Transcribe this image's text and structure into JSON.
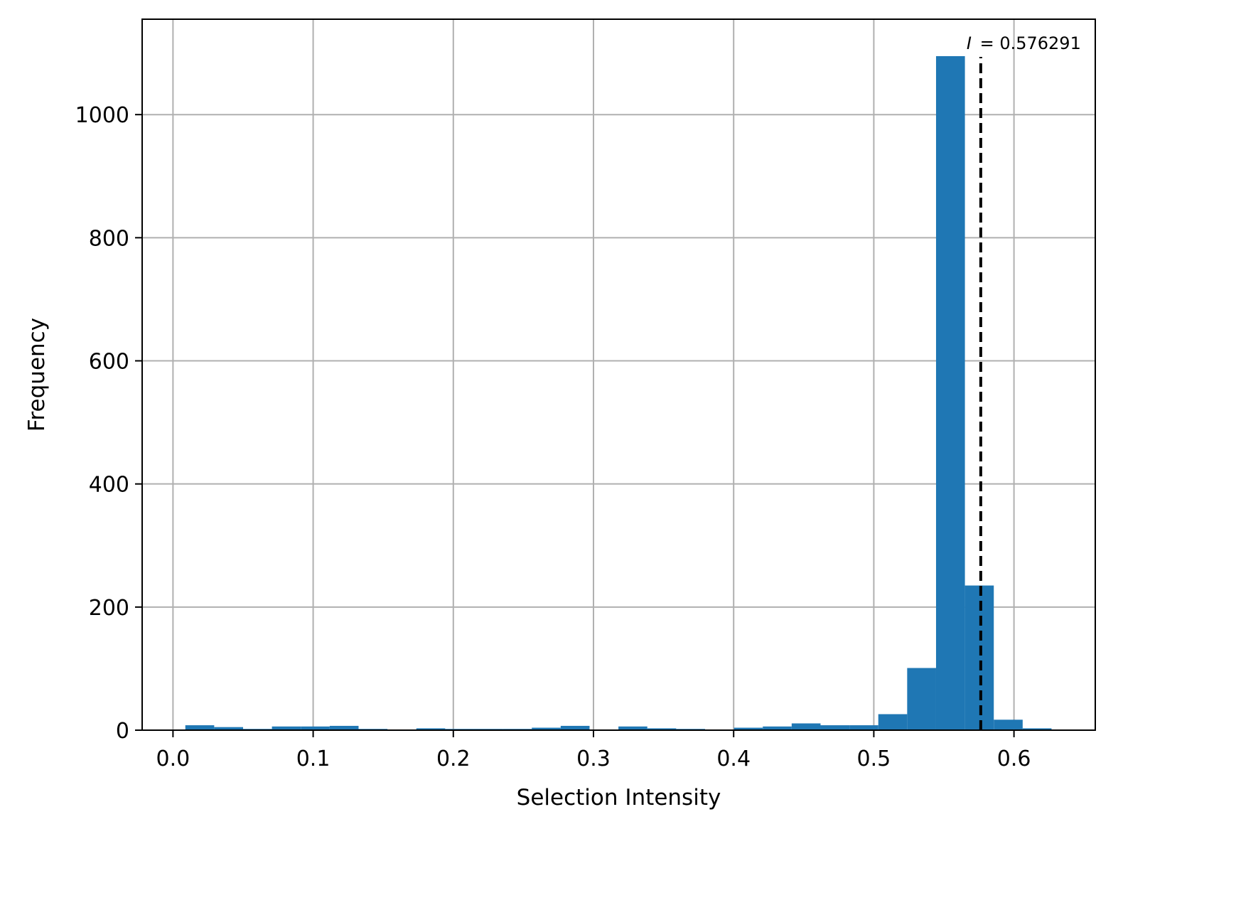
{
  "chart_data": {
    "type": "bar",
    "title": "",
    "xlabel": "Selection Intensity",
    "ylabel": "Frequency",
    "xlim": [
      -0.022,
      0.658
    ],
    "ylim": [
      0,
      1155
    ],
    "grid": true,
    "bar_color": "#1f77b4",
    "bin_width": 0.0206,
    "bins": [
      {
        "x0": 0.0088,
        "value": 8
      },
      {
        "x0": 0.0294,
        "value": 5
      },
      {
        "x0": 0.05,
        "value": 2
      },
      {
        "x0": 0.0706,
        "value": 6
      },
      {
        "x0": 0.0912,
        "value": 6
      },
      {
        "x0": 0.1118,
        "value": 7
      },
      {
        "x0": 0.1324,
        "value": 2
      },
      {
        "x0": 0.153,
        "value": 0
      },
      {
        "x0": 0.1736,
        "value": 3
      },
      {
        "x0": 0.1942,
        "value": 2
      },
      {
        "x0": 0.2148,
        "value": 2
      },
      {
        "x0": 0.2354,
        "value": 2
      },
      {
        "x0": 0.256,
        "value": 4
      },
      {
        "x0": 0.2766,
        "value": 7
      },
      {
        "x0": 0.2972,
        "value": 0
      },
      {
        "x0": 0.3178,
        "value": 6
      },
      {
        "x0": 0.3384,
        "value": 3
      },
      {
        "x0": 0.359,
        "value": 2
      },
      {
        "x0": 0.3796,
        "value": 0
      },
      {
        "x0": 0.4002,
        "value": 4
      },
      {
        "x0": 0.4208,
        "value": 6
      },
      {
        "x0": 0.4414,
        "value": 11
      },
      {
        "x0": 0.462,
        "value": 8
      },
      {
        "x0": 0.4826,
        "value": 8
      },
      {
        "x0": 0.5032,
        "value": 26
      },
      {
        "x0": 0.5238,
        "value": 101
      },
      {
        "x0": 0.5444,
        "value": 1095
      },
      {
        "x0": 0.565,
        "value": 235
      },
      {
        "x0": 0.5856,
        "value": 17
      },
      {
        "x0": 0.6062,
        "value": 3
      }
    ],
    "x_ticks": [
      {
        "value": 0.0,
        "label": "0.0"
      },
      {
        "value": 0.1,
        "label": "0.1"
      },
      {
        "value": 0.2,
        "label": "0.2"
      },
      {
        "value": 0.3,
        "label": "0.3"
      },
      {
        "value": 0.4,
        "label": "0.4"
      },
      {
        "value": 0.5,
        "label": "0.5"
      },
      {
        "value": 0.6,
        "label": "0.6"
      }
    ],
    "y_ticks": [
      {
        "value": 0,
        "label": "0"
      },
      {
        "value": 200,
        "label": "200"
      },
      {
        "value": 400,
        "label": "400"
      },
      {
        "value": 600,
        "label": "600"
      },
      {
        "value": 800,
        "label": "800"
      },
      {
        "value": 1000,
        "label": "1000"
      }
    ],
    "reference_line": {
      "x": 0.576291,
      "style": "dashed",
      "color": "#000000",
      "label_symbol": "I",
      "label_value": "= 0.576291"
    }
  }
}
